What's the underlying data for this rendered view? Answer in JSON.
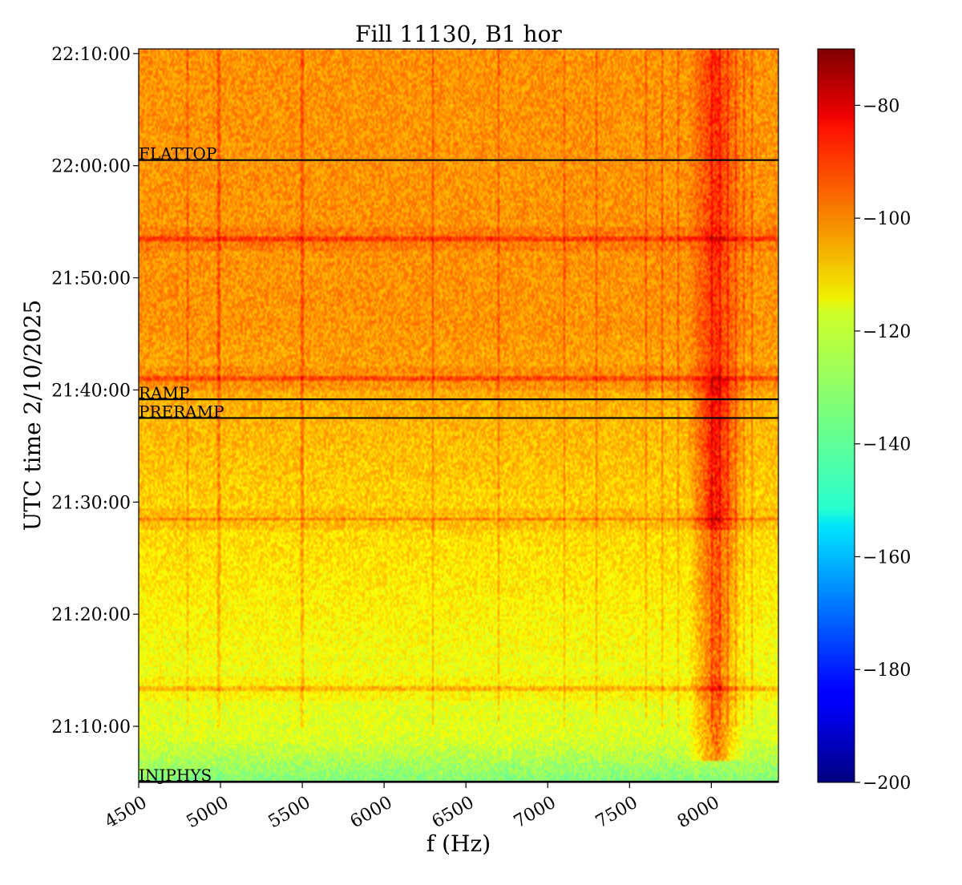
{
  "chart_data": {
    "type": "heatmap",
    "title": "Fill 11130, B1 hor",
    "xlabel": "f (Hz)",
    "ylabel": "UTC time 2/10/2025",
    "xlim": [
      4500,
      8410
    ],
    "x_ticks": [
      4500,
      5000,
      5500,
      6000,
      6500,
      7000,
      7500,
      8000
    ],
    "x_tick_labels": [
      "4500",
      "5000",
      "5500",
      "6000",
      "6500",
      "7000",
      "7500",
      "8000"
    ],
    "ylim": [
      "21:05:00",
      "22:10:25"
    ],
    "y_ticks": [
      "21:10:00",
      "21:20:00",
      "21:30:00",
      "21:40:00",
      "21:50:00",
      "22:00:00",
      "22:10:00"
    ],
    "colorbar": {
      "colormap": "jet",
      "range": [
        -200,
        -70
      ],
      "ticks": [
        -200,
        -180,
        -160,
        -140,
        -120,
        -100,
        -80
      ],
      "tick_labels": [
        "−200",
        "−180",
        "−160",
        "−140",
        "−120",
        "−100",
        "−80"
      ]
    },
    "event_markers": [
      {
        "label": "INJPHYS",
        "time": "21:05:00"
      },
      {
        "label": "PRERAMP",
        "time": "21:37:30"
      },
      {
        "label": "RAMP",
        "time": "21:39:10"
      },
      {
        "label": "FLATTOP",
        "time": "22:00:30"
      }
    ],
    "spectral_features": {
      "broadband_hotspot_hz": [
        7850,
        8200
      ],
      "harmonic_lines_hz": [
        4800,
        4990,
        5500,
        6300,
        6700,
        7100,
        7300,
        7600,
        7700,
        7800,
        8000,
        8050,
        8100,
        8150,
        8200,
        8250
      ],
      "noisy_bands_time": [
        "21:13:20",
        "21:28:30",
        "21:41:00",
        "21:53:30"
      ],
      "background_level_start": -125,
      "background_level_end": -105,
      "hotspot_level": -82
    }
  }
}
